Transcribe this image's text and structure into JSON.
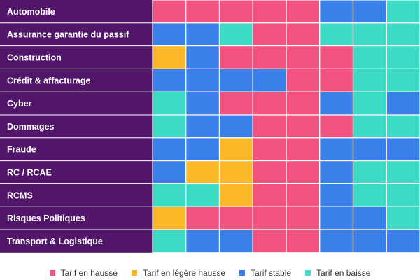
{
  "chart_data": {
    "type": "heatmap",
    "rows": [
      "Automobile",
      "Assurance garantie du passif",
      "Construction",
      "Crédit & affacturage",
      "Cyber",
      "Dommages",
      "Fraude",
      "RC / RCAE",
      "RCMS",
      "Risques Politiques",
      "Transport & Logistique"
    ],
    "categories": [
      "hausse",
      "legere_hausse",
      "stable",
      "baisse"
    ],
    "values": [
      [
        "hausse",
        "hausse",
        "hausse",
        "hausse",
        "hausse",
        "stable",
        "stable",
        "baisse"
      ],
      [
        "stable",
        "stable",
        "baisse",
        "hausse",
        "hausse",
        "baisse",
        "baisse",
        "baisse"
      ],
      [
        "legere_hausse",
        "stable",
        "hausse",
        "hausse",
        "hausse",
        "hausse",
        "baisse",
        "baisse"
      ],
      [
        "stable",
        "stable",
        "stable",
        "stable",
        "hausse",
        "hausse",
        "baisse",
        "baisse"
      ],
      [
        "baisse",
        "stable",
        "hausse",
        "hausse",
        "hausse",
        "stable",
        "baisse",
        "stable"
      ],
      [
        "baisse",
        "stable",
        "stable",
        "hausse",
        "hausse",
        "hausse",
        "baisse",
        "baisse"
      ],
      [
        "stable",
        "stable",
        "legere_hausse",
        "hausse",
        "hausse",
        "stable",
        "stable",
        "stable"
      ],
      [
        "stable",
        "legere_hausse",
        "legere_hausse",
        "hausse",
        "hausse",
        "stable",
        "baisse",
        "baisse"
      ],
      [
        "baisse",
        "baisse",
        "legere_hausse",
        "hausse",
        "hausse",
        "stable",
        "baisse",
        "baisse"
      ],
      [
        "legere_hausse",
        "hausse",
        "hausse",
        "hausse",
        "hausse",
        "stable",
        "stable",
        "baisse"
      ],
      [
        "baisse",
        "stable",
        "stable",
        "hausse",
        "hausse",
        "stable",
        "stable",
        "stable"
      ]
    ],
    "colors": {
      "hausse": "#f2527f",
      "legere_hausse": "#fbb829",
      "stable": "#3b7fe8",
      "baisse": "#3ddbc6",
      "label_bg": "#511569",
      "label_text": "#ffffff",
      "grid_line": "#ffffff"
    },
    "legend": [
      {
        "key": "hausse",
        "label": "Tarif en hausse"
      },
      {
        "key": "legere_hausse",
        "label": "Tarif en légère hausse"
      },
      {
        "key": "stable",
        "label": "Tarif stable"
      },
      {
        "key": "baisse",
        "label": "Tarif en baisse"
      }
    ],
    "legend_position": "bottom",
    "grid": true
  }
}
